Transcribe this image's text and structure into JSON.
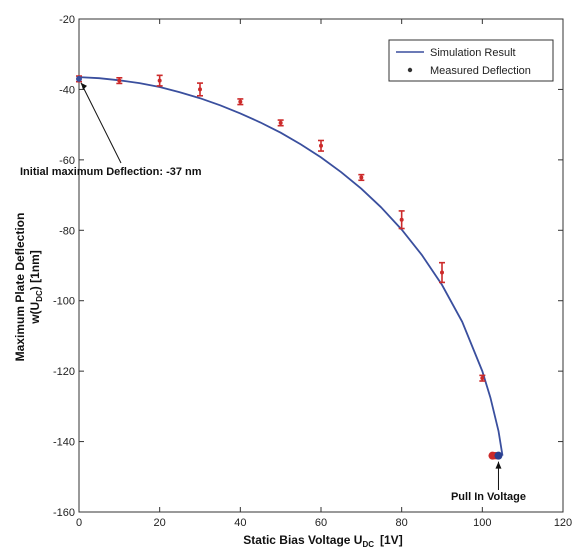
{
  "chart_data": {
    "type": "line",
    "title": "",
    "xlabel": {
      "main": "Static Bias Voltage U",
      "sub": "DC",
      "unit": "[1V]"
    },
    "ylabel": {
      "line1": "Maximum Plate Deflection",
      "line2_main": "w(U",
      "line2_sub": "DC",
      "line2_end": ")  [1nm]"
    },
    "xlim": [
      0,
      120
    ],
    "ylim": [
      -160,
      -20
    ],
    "xticks": [
      0,
      20,
      40,
      60,
      80,
      100,
      120
    ],
    "yticks": [
      -20,
      -40,
      -60,
      -80,
      -100,
      -120,
      -140,
      -160
    ],
    "grid": false,
    "legend_position": "top-right",
    "series": [
      {
        "name": "Simulation Result",
        "kind": "line",
        "color": "#3a4f9e",
        "x": [
          0,
          5,
          10,
          15,
          20,
          25,
          30,
          35,
          40,
          45,
          50,
          55,
          60,
          65,
          70,
          75,
          80,
          85,
          90,
          95,
          100,
          102,
          104,
          105
        ],
        "y": [
          -36.5,
          -36.8,
          -37.4,
          -38.2,
          -39.3,
          -40.8,
          -42.5,
          -44.5,
          -46.8,
          -49.4,
          -52.3,
          -55.6,
          -59.3,
          -63.5,
          -68.2,
          -73.6,
          -79.8,
          -87.0,
          -95.5,
          -106.0,
          -120.0,
          -127.5,
          -137.0,
          -144.0
        ]
      },
      {
        "name": "Measured Deflection",
        "kind": "scatter",
        "color": "#cc2a2a",
        "x": [
          0,
          10,
          20,
          30,
          40,
          50,
          60,
          70,
          80,
          90,
          100,
          103
        ],
        "y": [
          -37,
          -37.5,
          -37.5,
          -40,
          -43.5,
          -49.5,
          -56,
          -65,
          -77,
          -92,
          -122,
          -144
        ],
        "err": [
          0.8,
          0.8,
          1.5,
          1.8,
          0.8,
          0.8,
          1.5,
          0.8,
          2.5,
          2.8,
          0.8,
          0.8
        ]
      }
    ],
    "annotations": [
      {
        "text": "Initial maximum Deflection: -37 nm",
        "point": [
          0,
          -37
        ]
      },
      {
        "text": "Pull In Voltage",
        "point": [
          104,
          -144
        ]
      }
    ],
    "legend": {
      "entries": [
        "Simulation Result",
        "Measured Deflection"
      ]
    }
  }
}
